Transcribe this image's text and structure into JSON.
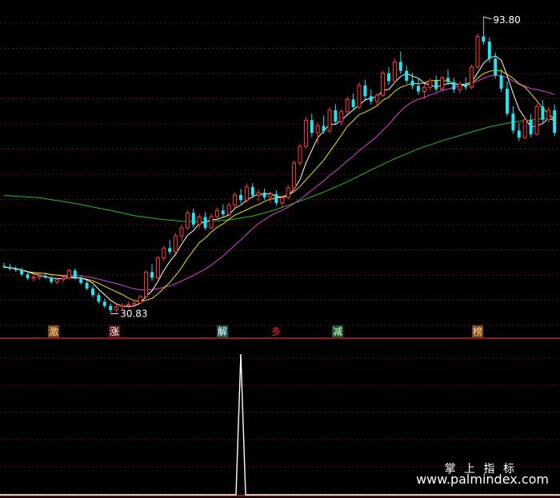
{
  "chart_data": [
    {
      "type": "candlestick",
      "title": "",
      "annotations": {
        "high_label": "93.80",
        "low_label": "30.83"
      },
      "signal_labels": [
        "激",
        "涨",
        "解",
        "多",
        "减",
        "榜"
      ],
      "colors": {
        "up": "#ff3b3b",
        "down": "#29e1f0",
        "ma5": "#ffffff",
        "ma10": "#f5e60a",
        "ma20": "#e23ee0",
        "ma60": "#21c21f",
        "grid": "#6a1010"
      },
      "candles": [
        [
          40.8,
          41.5,
          40.2,
          40.6
        ],
        [
          40.6,
          41.2,
          39.8,
          40.2
        ],
        [
          40.2,
          40.8,
          39.5,
          39.9
        ],
        [
          39.9,
          40.5,
          38.6,
          39.0
        ],
        [
          39.0,
          39.6,
          37.8,
          38.2
        ],
        [
          38.2,
          38.9,
          37.5,
          38.4
        ],
        [
          38.4,
          39.1,
          37.9,
          38.7
        ],
        [
          38.7,
          39.4,
          38.1,
          38.3
        ],
        [
          38.3,
          38.8,
          37.0,
          37.4
        ],
        [
          37.4,
          38.2,
          36.9,
          37.9
        ],
        [
          37.9,
          38.6,
          37.3,
          38.2
        ],
        [
          38.2,
          40.1,
          38.0,
          39.8
        ],
        [
          39.8,
          40.3,
          37.9,
          38.1
        ],
        [
          38.1,
          38.7,
          36.8,
          37.2
        ],
        [
          37.2,
          37.8,
          35.6,
          36.0
        ],
        [
          36.0,
          36.6,
          34.1,
          34.6
        ],
        [
          34.6,
          35.1,
          32.8,
          33.2
        ],
        [
          33.2,
          33.9,
          31.9,
          32.3
        ],
        [
          32.3,
          32.8,
          30.83,
          31.4
        ],
        [
          31.4,
          32.6,
          31.0,
          32.1
        ],
        [
          32.1,
          32.9,
          31.5,
          32.4
        ],
        [
          32.4,
          33.2,
          31.8,
          32.6
        ],
        [
          32.6,
          33.4,
          32.0,
          32.9
        ],
        [
          32.9,
          34.6,
          32.7,
          34.3
        ],
        [
          34.3,
          39.8,
          34.1,
          39.5
        ],
        [
          39.5,
          41.2,
          37.6,
          38.3
        ],
        [
          38.3,
          42.9,
          38.0,
          42.5
        ],
        [
          42.5,
          45.1,
          41.8,
          44.6
        ],
        [
          44.6,
          46.3,
          43.2,
          43.8
        ],
        [
          43.8,
          47.8,
          43.5,
          47.2
        ],
        [
          47.2,
          49.6,
          46.1,
          48.9
        ],
        [
          48.9,
          52.6,
          48.5,
          52.1
        ],
        [
          52.1,
          53.0,
          48.9,
          49.6
        ],
        [
          49.6,
          51.8,
          48.7,
          51.2
        ],
        [
          51.2,
          52.3,
          48.4,
          48.9
        ],
        [
          48.9,
          51.9,
          48.6,
          51.3
        ],
        [
          51.3,
          53.2,
          50.6,
          52.6
        ],
        [
          52.6,
          53.9,
          51.1,
          51.8
        ],
        [
          51.8,
          54.2,
          51.2,
          53.7
        ],
        [
          53.7,
          56.4,
          53.2,
          55.9
        ],
        [
          55.9,
          57.2,
          54.1,
          54.8
        ],
        [
          54.8,
          58.3,
          54.3,
          57.6
        ],
        [
          57.6,
          58.4,
          55.2,
          55.8
        ],
        [
          55.8,
          57.1,
          54.6,
          56.4
        ],
        [
          56.4,
          57.3,
          54.9,
          55.4
        ],
        [
          55.4,
          56.6,
          54.2,
          56.1
        ],
        [
          56.1,
          56.9,
          53.6,
          54.2
        ],
        [
          54.2,
          55.8,
          53.3,
          55.3
        ],
        [
          55.3,
          57.9,
          55.0,
          57.4
        ],
        [
          57.4,
          63.2,
          57.0,
          62.7
        ],
        [
          62.7,
          66.8,
          62.1,
          66.2
        ],
        [
          66.2,
          72.5,
          65.8,
          71.8
        ],
        [
          71.8,
          73.2,
          68.2,
          69.1
        ],
        [
          69.1,
          71.3,
          66.7,
          70.6
        ],
        [
          70.6,
          72.8,
          68.9,
          69.5
        ],
        [
          69.5,
          74.6,
          69.0,
          73.9
        ],
        [
          73.9,
          75.2,
          70.8,
          71.5
        ],
        [
          71.5,
          74.1,
          70.6,
          73.6
        ],
        [
          73.6,
          76.8,
          73.1,
          76.2
        ],
        [
          76.2,
          77.5,
          73.9,
          74.6
        ],
        [
          74.6,
          79.8,
          74.1,
          79.2
        ],
        [
          79.2,
          80.4,
          76.2,
          76.9
        ],
        [
          76.9,
          78.3,
          75.1,
          75.8
        ],
        [
          75.8,
          77.6,
          74.8,
          77.1
        ],
        [
          77.1,
          82.3,
          76.8,
          81.8
        ],
        [
          81.8,
          83.1,
          79.3,
          80.1
        ],
        [
          80.1,
          84.9,
          79.7,
          84.2
        ],
        [
          84.2,
          86.4,
          81.6,
          82.3
        ],
        [
          82.3,
          83.4,
          79.6,
          80.2
        ],
        [
          80.2,
          81.9,
          78.4,
          79.1
        ],
        [
          79.1,
          80.8,
          77.2,
          77.9
        ],
        [
          77.9,
          79.6,
          76.4,
          78.8
        ],
        [
          78.8,
          80.7,
          78.1,
          80.2
        ],
        [
          80.2,
          81.3,
          77.8,
          78.4
        ],
        [
          78.4,
          81.2,
          78.0,
          80.8
        ],
        [
          80.8,
          82.6,
          79.3,
          79.9
        ],
        [
          79.9,
          80.8,
          77.6,
          78.3
        ],
        [
          78.3,
          80.1,
          77.5,
          79.5
        ],
        [
          79.5,
          80.9,
          78.2,
          78.8
        ],
        [
          78.8,
          83.6,
          78.4,
          83.1
        ],
        [
          83.1,
          90.2,
          82.7,
          89.6
        ],
        [
          89.6,
          93.8,
          87.8,
          88.5
        ],
        [
          88.5,
          89.4,
          84.1,
          84.9
        ],
        [
          84.9,
          86.2,
          80.6,
          81.3
        ],
        [
          81.3,
          82.7,
          77.8,
          78.5
        ],
        [
          78.5,
          80.1,
          72.6,
          73.2
        ],
        [
          73.2,
          74.8,
          68.9,
          69.6
        ],
        [
          69.6,
          71.2,
          67.4,
          68.1
        ],
        [
          68.1,
          72.4,
          67.8,
          71.9
        ],
        [
          71.9,
          73.1,
          68.2,
          68.8
        ],
        [
          68.8,
          75.3,
          68.5,
          74.7
        ],
        [
          74.7,
          76.1,
          71.3,
          71.9
        ],
        [
          71.9,
          74.6,
          71.4,
          73.9
        ],
        [
          73.9,
          75.2,
          68.4,
          69.1
        ]
      ],
      "ma60": [
        [
          0,
          55.8
        ],
        [
          6,
          55.3
        ],
        [
          12,
          54.1
        ],
        [
          18,
          52.6
        ],
        [
          22,
          51.5
        ],
        [
          26,
          50.8
        ],
        [
          30,
          50.3
        ],
        [
          34,
          50.2
        ],
        [
          38,
          50.6
        ],
        [
          42,
          51.4
        ],
        [
          46,
          52.8
        ],
        [
          50,
          54.6
        ],
        [
          54,
          56.5
        ],
        [
          58,
          58.7
        ],
        [
          62,
          61.2
        ],
        [
          66,
          63.6
        ],
        [
          70,
          65.7
        ],
        [
          74,
          67.4
        ],
        [
          78,
          68.9
        ],
        [
          82,
          70.4
        ],
        [
          86,
          71.4
        ],
        [
          90,
          72.0
        ],
        [
          93,
          72.2
        ]
      ],
      "indicator": {
        "type": "line",
        "color": "#ffffff",
        "spike_index": 40,
        "spike_value": 1.0
      }
    }
  ],
  "watermark": {
    "line1": "掌 上 指 标",
    "line2": "www.palmindex.com"
  }
}
